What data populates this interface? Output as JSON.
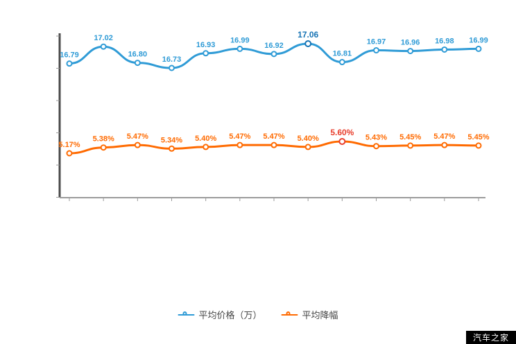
{
  "chart_data": {
    "type": "line",
    "x_count": 13,
    "grid": false,
    "legend_position": "bottom",
    "series": [
      {
        "name": "平均价格（万）",
        "color": "#2f9bd6",
        "values": [
          16.79,
          17.02,
          16.8,
          16.73,
          16.93,
          16.99,
          16.92,
          17.06,
          16.81,
          16.97,
          16.96,
          16.98,
          16.99
        ],
        "labels": [
          "16.79",
          "17.02",
          "16.80",
          "16.73",
          "16.93",
          "16.99",
          "16.92",
          "17.06",
          "16.81",
          "16.97",
          "16.96",
          "16.98",
          "16.99"
        ],
        "emphasis_index": 7,
        "emphasis_color": "#1673b4"
      },
      {
        "name": "平均降幅",
        "color": "#ff6a00",
        "values": [
          5.17,
          5.38,
          5.47,
          5.34,
          5.4,
          5.47,
          5.47,
          5.4,
          5.6,
          5.43,
          5.45,
          5.47,
          5.45
        ],
        "labels": [
          "5.17%",
          "5.38%",
          "5.47%",
          "5.34%",
          "5.40%",
          "5.47%",
          "5.47%",
          "5.40%",
          "5.60%",
          "5.43%",
          "5.45%",
          "5.47%",
          "5.45%"
        ],
        "emphasis_index": 8,
        "emphasis_color": "#e83e2c"
      }
    ]
  },
  "legend": {
    "items": [
      {
        "label": "平均价格（万）",
        "color": "#2f9bd6"
      },
      {
        "label": "平均降幅",
        "color": "#ff6a00"
      }
    ]
  },
  "watermark": {
    "text": "汽车之家",
    "bg": "#000000",
    "fg": "#ffffff"
  }
}
